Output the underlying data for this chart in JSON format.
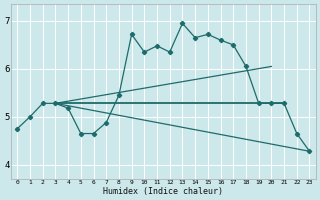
{
  "xlabel": "Humidex (Indice chaleur)",
  "xlim": [
    -0.5,
    23.5
  ],
  "ylim": [
    3.7,
    7.35
  ],
  "yticks": [
    4,
    5,
    6,
    7
  ],
  "xticks": [
    0,
    1,
    2,
    3,
    4,
    5,
    6,
    7,
    8,
    9,
    10,
    11,
    12,
    13,
    14,
    15,
    16,
    17,
    18,
    19,
    20,
    21,
    22,
    23
  ],
  "bg_color": "#cce8ea",
  "grid_color": "#ffffff",
  "line_color": "#1e6b6b",
  "line1_x": [
    0,
    1,
    2,
    3,
    4,
    5,
    6,
    7,
    8,
    9,
    10,
    11,
    12,
    13,
    14,
    15,
    16,
    17,
    18,
    19,
    20,
    21,
    22,
    23
  ],
  "line1_y": [
    4.75,
    5.0,
    5.28,
    5.28,
    5.18,
    4.65,
    4.65,
    4.88,
    5.45,
    6.72,
    6.35,
    6.48,
    6.35,
    6.95,
    6.65,
    6.72,
    6.6,
    6.5,
    6.05,
    5.28,
    5.28,
    5.28,
    4.65,
    4.28
  ],
  "line2_x": [
    3,
    21
  ],
  "line2_y": [
    5.28,
    5.28
  ],
  "line3_x": [
    3,
    20
  ],
  "line3_y": [
    5.28,
    6.05
  ],
  "line4_x": [
    3,
    23
  ],
  "line4_y": [
    5.28,
    4.28
  ]
}
